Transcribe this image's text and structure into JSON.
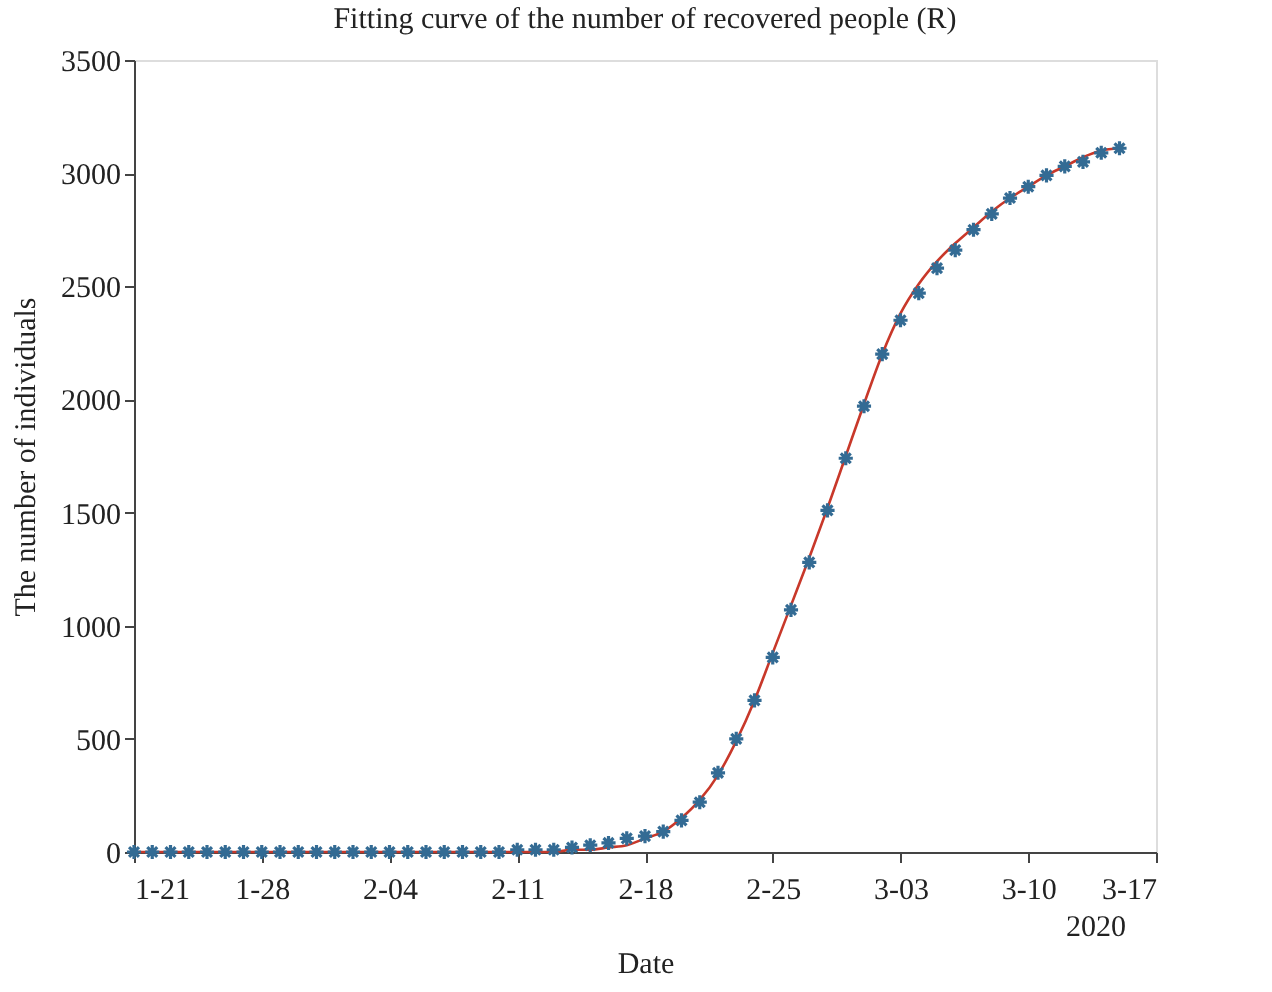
{
  "chart_data": {
    "type": "scatter",
    "title": "Fitting curve of the number of recovered people (R)",
    "xlabel": "Date",
    "ylabel": "The number of individuals",
    "annotations": [
      "2020"
    ],
    "x": [
      "2020-01-21",
      "2020-01-22",
      "2020-01-23",
      "2020-01-24",
      "2020-01-25",
      "2020-01-26",
      "2020-01-27",
      "2020-01-28",
      "2020-01-29",
      "2020-01-30",
      "2020-01-31",
      "2020-02-01",
      "2020-02-02",
      "2020-02-03",
      "2020-02-04",
      "2020-02-05",
      "2020-02-06",
      "2020-02-07",
      "2020-02-08",
      "2020-02-09",
      "2020-02-10",
      "2020-02-11",
      "2020-02-12",
      "2020-02-13",
      "2020-02-14",
      "2020-02-15",
      "2020-02-16",
      "2020-02-17",
      "2020-02-18",
      "2020-02-19",
      "2020-02-20",
      "2020-02-21",
      "2020-02-22",
      "2020-02-23",
      "2020-02-24",
      "2020-02-25",
      "2020-02-26",
      "2020-02-27",
      "2020-02-28",
      "2020-02-29",
      "2020-03-01",
      "2020-03-02",
      "2020-03-03",
      "2020-03-04",
      "2020-03-05",
      "2020-03-06",
      "2020-03-07",
      "2020-03-08",
      "2020-03-09",
      "2020-03-10",
      "2020-03-11",
      "2020-03-12",
      "2020-03-13",
      "2020-03-14",
      "2020-03-15"
    ],
    "series": [
      {
        "type": "scatter",
        "color": "#336b94",
        "marker": "cross",
        "values": [
          0,
          0,
          0,
          0,
          0,
          0,
          0,
          0,
          0,
          0,
          0,
          0,
          0,
          0,
          0,
          0,
          0,
          0,
          0,
          0,
          0,
          10,
          10,
          10,
          20,
          30,
          40,
          60,
          70,
          90,
          140,
          220,
          350,
          500,
          670,
          860,
          1070,
          1280,
          1510,
          1740,
          1970,
          2200,
          2350,
          2470,
          2580,
          2660,
          2750,
          2820,
          2890,
          2940,
          2990,
          3030,
          3050,
          3090,
          3110
        ]
      },
      {
        "type": "line",
        "color": "#c8382a",
        "line_style": "solid",
        "values": [
          0,
          0,
          0,
          0,
          0,
          0,
          0,
          0,
          0,
          0,
          0,
          0,
          0,
          0,
          0,
          0,
          0,
          0,
          0,
          0,
          0,
          0,
          0,
          0,
          10,
          10,
          20,
          30,
          60,
          90,
          150,
          230,
          340,
          490,
          670,
          880,
          1090,
          1300,
          1520,
          1750,
          1980,
          2200,
          2380,
          2510,
          2610,
          2690,
          2760,
          2830,
          2890,
          2940,
          2990,
          3030,
          3070,
          3100,
          3110
        ]
      }
    ],
    "xlim": [
      "2020-01-21",
      "2020-03-17"
    ],
    "xticks": [
      {
        "value": "2020-01-21",
        "label": "1-21"
      },
      {
        "value": "2020-01-28",
        "label": "1-28"
      },
      {
        "value": "2020-02-04",
        "label": "2-04"
      },
      {
        "value": "2020-02-11",
        "label": "2-11"
      },
      {
        "value": "2020-02-18",
        "label": "2-18"
      },
      {
        "value": "2020-02-25",
        "label": "2-25"
      },
      {
        "value": "2020-03-03",
        "label": "3-03"
      },
      {
        "value": "2020-03-10",
        "label": "3-10"
      },
      {
        "value": "2020-03-17",
        "label": "3-17"
      }
    ],
    "ylim": [
      0,
      3500
    ],
    "yticks": [
      0,
      500,
      1000,
      1500,
      2000,
      2500,
      3000,
      3500
    ],
    "grid": false,
    "legend": false
  }
}
